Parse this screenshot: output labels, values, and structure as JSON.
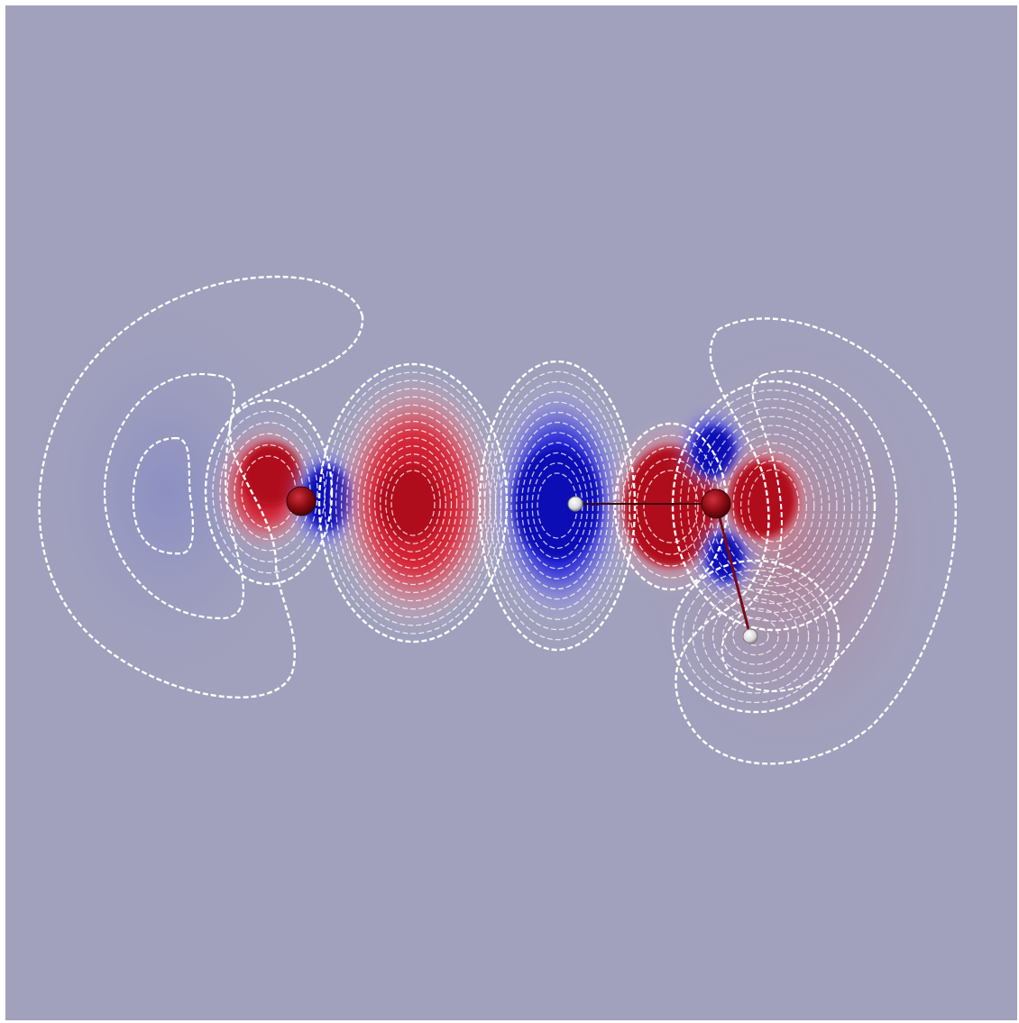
{
  "colors": {
    "background": "#a1a1bd",
    "positive_lobe": "#b0101c",
    "positive_lobe_bright": "#e01222",
    "negative_lobe": "#0a0ab6",
    "negative_lobe_bright": "#1e1ee0",
    "contour_line": "#ffffff",
    "oxygen_atom": "#8a0c12",
    "hydrogen_atom": "#e6e6e6",
    "bond": "#3a0a0e"
  },
  "scene": {
    "atoms": [
      {
        "element": "O",
        "label": ""
      },
      {
        "element": "H",
        "label": ""
      },
      {
        "element": "O",
        "label": ""
      },
      {
        "element": "H",
        "label": ""
      }
    ],
    "lobes": [
      {
        "sign": "positive",
        "region": "left-oxygen-outer"
      },
      {
        "sign": "negative",
        "region": "left-oxygen-inner"
      },
      {
        "sign": "positive",
        "region": "bridge-left"
      },
      {
        "sign": "negative",
        "region": "central-hydrogen"
      },
      {
        "sign": "positive",
        "region": "right-oxygen-left"
      },
      {
        "sign": "negative",
        "region": "right-oxygen-top"
      },
      {
        "sign": "negative",
        "region": "right-oxygen-bottom"
      },
      {
        "sign": "positive",
        "region": "right-oxygen-right"
      }
    ],
    "contour_style": "dashed-white"
  }
}
